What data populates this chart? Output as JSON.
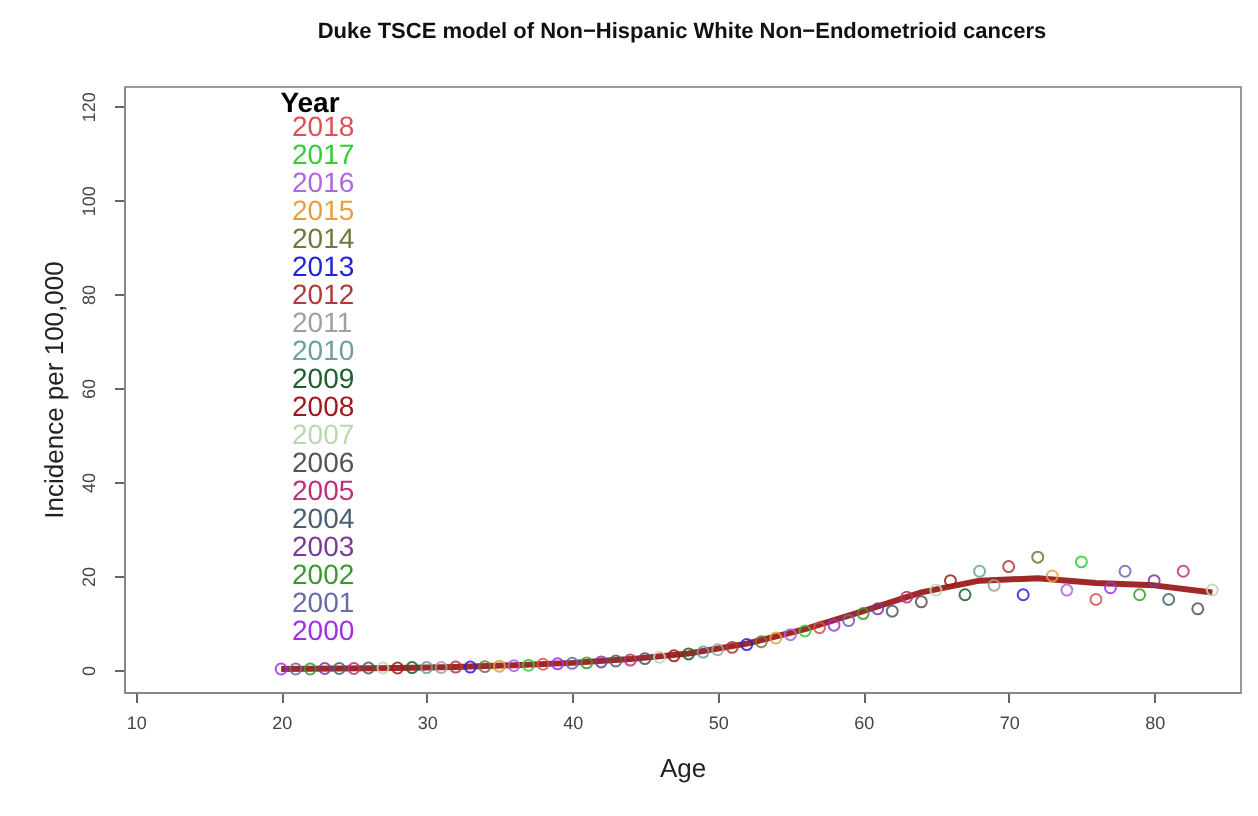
{
  "chart_data": {
    "type": "scatter",
    "title": "Duke TSCE model of Non−Hispanic White Non−Endometrioid cancers",
    "xlabel": "Age",
    "ylabel": "Incidence per 100,000",
    "legend_title": "Year",
    "xlim": [
      9.2,
      85.9
    ],
    "xticks": [
      10,
      20,
      30,
      40,
      50,
      60,
      70,
      80
    ],
    "ylim": [
      -4.7,
      124.3
    ],
    "yticks": [
      0,
      20,
      40,
      60,
      80,
      100,
      120
    ],
    "grid": false,
    "legend": "top left",
    "marker": "circle",
    "series": [
      {
        "name": "2000",
        "color": "#a030e0",
        "x": [
          20,
          39,
          58,
          77
        ],
        "values": [
          0.2,
          1.3,
          9.5,
          17.5
        ]
      },
      {
        "name": "2001",
        "color": "#6a6aaa",
        "x": [
          21,
          40,
          59,
          78
        ],
        "values": [
          0.2,
          1.4,
          10.5,
          21
        ]
      },
      {
        "name": "2002",
        "color": "#3a9a30",
        "x": [
          22,
          41,
          60,
          79
        ],
        "values": [
          0.2,
          1.5,
          12,
          16
        ]
      },
      {
        "name": "2003",
        "color": "#7a3a9a",
        "x": [
          23,
          42,
          61,
          80
        ],
        "values": [
          0.3,
          1.7,
          13,
          19
        ]
      },
      {
        "name": "2004",
        "color": "#4a6070",
        "x": [
          24,
          43,
          62,
          81
        ],
        "values": [
          0.3,
          1.9,
          12.5,
          15
        ]
      },
      {
        "name": "2005",
        "color": "#c0307a",
        "x": [
          25,
          44,
          63,
          82
        ],
        "values": [
          0.3,
          2.1,
          15.5,
          21
        ]
      },
      {
        "name": "2006",
        "color": "#555555",
        "x": [
          26,
          45,
          64,
          83
        ],
        "values": [
          0.4,
          2.4,
          14.5,
          13
        ]
      },
      {
        "name": "2007",
        "color": "#b8d8b0",
        "x": [
          27,
          46,
          65,
          84
        ],
        "values": [
          0.4,
          2.7,
          17,
          17
        ]
      },
      {
        "name": "2008",
        "color": "#a01818",
        "x": [
          28,
          47,
          66
        ],
        "values": [
          0.4,
          3.0,
          19
        ]
      },
      {
        "name": "2009",
        "color": "#1e5e2e",
        "x": [
          29,
          48,
          67
        ],
        "values": [
          0.5,
          3.4,
          16
        ]
      },
      {
        "name": "2010",
        "color": "#6aa0a0",
        "x": [
          30,
          49,
          68
        ],
        "values": [
          0.5,
          3.8,
          21
        ]
      },
      {
        "name": "2011",
        "color": "#a0a0a0",
        "x": [
          31,
          50,
          69
        ],
        "values": [
          0.5,
          4.3,
          18
        ]
      },
      {
        "name": "2012",
        "color": "#b03a3a",
        "x": [
          32,
          51,
          70
        ],
        "values": [
          0.6,
          4.8,
          22
        ]
      },
      {
        "name": "2013",
        "color": "#2222dd",
        "x": [
          33,
          52,
          71
        ],
        "values": [
          0.6,
          5.4,
          16
        ]
      },
      {
        "name": "2014",
        "color": "#6b7b3a",
        "x": [
          34,
          53,
          72
        ],
        "values": [
          0.7,
          6.0,
          24
        ]
      },
      {
        "name": "2015",
        "color": "#e69f40",
        "x": [
          35,
          54,
          73
        ],
        "values": [
          0.8,
          6.8,
          20
        ]
      },
      {
        "name": "2016",
        "color": "#b066e0",
        "x": [
          36,
          55,
          74
        ],
        "values": [
          0.9,
          7.5,
          17
        ]
      },
      {
        "name": "2017",
        "color": "#33cc33",
        "x": [
          37,
          56,
          75
        ],
        "values": [
          1.0,
          8.3,
          23
        ]
      },
      {
        "name": "2018",
        "color": "#d9534f",
        "x": [
          38,
          57,
          76
        ],
        "values": [
          1.2,
          9.0,
          15
        ]
      },
      {
        "type": "line",
        "marker": "none",
        "color": "#a02828",
        "x": [
          20,
          24,
          28,
          32,
          36,
          40,
          44,
          48,
          52,
          56,
          60,
          64,
          68,
          72,
          76,
          80,
          84
        ],
        "values": [
          0.2,
          0.3,
          0.4,
          0.6,
          1.0,
          1.5,
          2.3,
          3.5,
          5.6,
          8.7,
          12.5,
          16.5,
          19.0,
          19.5,
          18.5,
          18.0,
          16.5
        ]
      }
    ]
  }
}
